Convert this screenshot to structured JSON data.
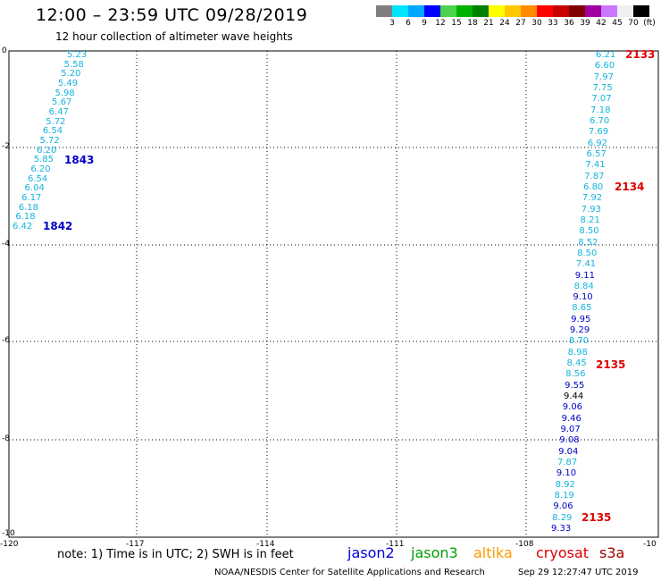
{
  "header": {
    "title": "12:00 – 23:59 UTC 09/28/2019",
    "subtitle": "12 hour collection of altimeter wave heights"
  },
  "scale": {
    "colors": [
      "#7f7f7f",
      "#00e5ff",
      "#00a6ff",
      "#0000ff",
      "#4cd24c",
      "#00b200",
      "#008000",
      "#ffff00",
      "#ffc800",
      "#ff8c00",
      "#ff0000",
      "#c80000",
      "#800000",
      "#a000a0",
      "#c878ff",
      "#f0f0f0",
      "#000000"
    ],
    "labels": [
      "3",
      "6",
      "9",
      "12",
      "15",
      "18",
      "21",
      "24",
      "27",
      "30",
      "33",
      "36",
      "39",
      "42",
      "45",
      "70",
      "(ft)"
    ]
  },
  "axes": {
    "x_ticks": [
      "-120",
      "-117",
      "-114",
      "-111",
      "-108",
      "-10"
    ],
    "y_ticks": [
      "0",
      "-2",
      "-4",
      "-6",
      "-8",
      "-10"
    ]
  },
  "track_left": {
    "values": [
      "5.23",
      "5.58",
      "5.20",
      "5.49",
      "5.98",
      "5.67",
      "6.47",
      "5.72",
      "6.54",
      "5.72",
      "6.20",
      "5.85",
      "6.20",
      "6.54",
      "6.04",
      "6.17",
      "6.18",
      "6.18",
      "6.42"
    ],
    "colors": [
      "c",
      "c",
      "c",
      "c",
      "c",
      "c",
      "c",
      "c",
      "c",
      "c",
      "c",
      "c",
      "c",
      "c",
      "c",
      "c",
      "c",
      "c",
      "c"
    ]
  },
  "track_right": {
    "values": [
      "6.21",
      "6.60",
      "7.97",
      "7.75",
      "7.07",
      "7.18",
      "6.70",
      "7.69",
      "6.92",
      "6.57",
      "7.41",
      "7.87",
      "6.80",
      "7.92",
      "7.93",
      "8.21",
      "8.50",
      "8.52",
      "8.50",
      "7.41",
      "9.11",
      "8.84",
      "9.10",
      "8.65",
      "9.95",
      "9.29",
      "8.70",
      "8.98",
      "8.45",
      "8.56",
      "9.55",
      "9.44",
      "9.06",
      "9.46",
      "9.07",
      "9.08",
      "9.04",
      "7.87",
      "9.10",
      "8.92",
      "8.19",
      "9.06",
      "8.29",
      "9.33"
    ],
    "colors": [
      "c",
      "c",
      "c",
      "c",
      "c",
      "c",
      "c",
      "c",
      "c",
      "c",
      "c",
      "c",
      "c",
      "c",
      "c",
      "c",
      "c",
      "c",
      "c",
      "c",
      "b",
      "c",
      "b",
      "c",
      "b",
      "b",
      "c",
      "c",
      "c",
      "c",
      "b",
      "k",
      "b",
      "b",
      "b",
      "b",
      "b",
      "c",
      "b",
      "c",
      "c",
      "b",
      "c",
      "b"
    ]
  },
  "pass_labels": [
    {
      "text": "1843",
      "color": "#0000c8"
    },
    {
      "text": "1842",
      "color": "#0000c8"
    },
    {
      "text": "2133",
      "color": "#e00000"
    },
    {
      "text": "2134",
      "color": "#e00000"
    },
    {
      "text": "2135",
      "color": "#e00000"
    },
    {
      "text": "2135",
      "color": "#e00000"
    }
  ],
  "footer": {
    "note": "note:  1) Time is in UTC;  2) SWH is in feet",
    "missions": [
      {
        "name": "jason2",
        "color": "#0000e0"
      },
      {
        "name": "jason3",
        "color": "#00a000"
      },
      {
        "name": "altika",
        "color": "#ff9900"
      },
      {
        "name": "cryosat",
        "color": "#e00000"
      },
      {
        "name": "s3a",
        "color": "#a00000"
      }
    ],
    "credit": "NOAA/NESDIS Center for Satellite Applications and Research",
    "timestamp": "Sep 29 12:27:47 UTC 2019"
  }
}
